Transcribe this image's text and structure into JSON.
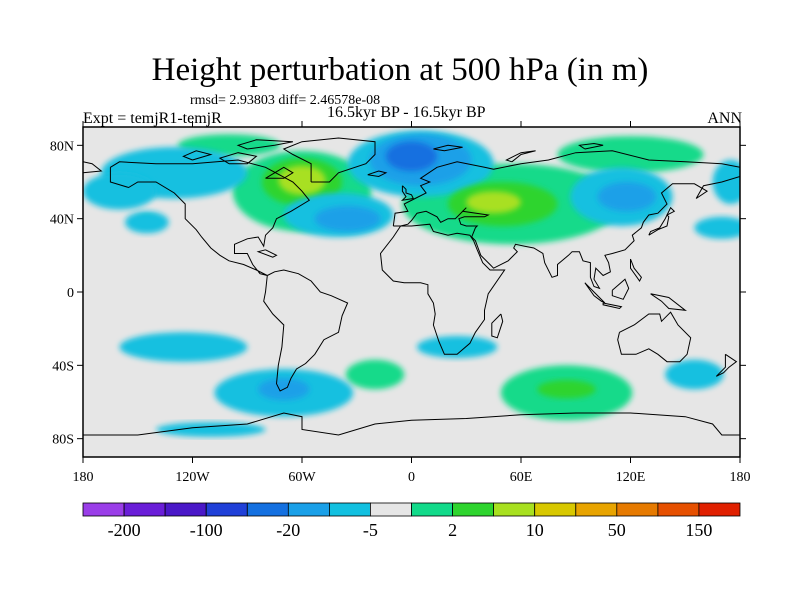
{
  "header": {
    "title": "Height perturbation at 500 hPa (in m)",
    "stats": "rmsd= 2.93803 diff= 2.46578e-08",
    "left_label": "Expt = temjR1-temjR",
    "center_label": "16.5kyr BP - 16.5kyr BP",
    "right_label": "ANN"
  },
  "chart_data": {
    "type": "heatmap",
    "title": "Height perturbation at 500 hPa (in m)",
    "projection": "cylindrical equidistant",
    "xlim": [
      -180,
      180
    ],
    "ylim": [
      -90,
      90
    ],
    "x_ticks": [
      {
        "value": -180,
        "label": "180"
      },
      {
        "value": -120,
        "label": "120W"
      },
      {
        "value": -60,
        "label": "60W"
      },
      {
        "value": 0,
        "label": "0"
      },
      {
        "value": 60,
        "label": "60E"
      },
      {
        "value": 120,
        "label": "120E"
      },
      {
        "value": 180,
        "label": "180"
      }
    ],
    "y_ticks": [
      {
        "value": 80,
        "label": "80N"
      },
      {
        "value": 40,
        "label": "40N"
      },
      {
        "value": 0,
        "label": "0"
      },
      {
        "value": -40,
        "label": "40S"
      },
      {
        "value": -80,
        "label": "80S"
      }
    ],
    "colorbar": {
      "colors": [
        "#9a3ee8",
        "#6a1ed8",
        "#4a18c8",
        "#2040d8",
        "#1470e0",
        "#1aa0e8",
        "#12c0e0",
        "#e6e6e6",
        "#12da8a",
        "#2ed42e",
        "#a8e020",
        "#d8c800",
        "#e8a400",
        "#e67a00",
        "#e65000",
        "#e02000"
      ],
      "labels": [
        {
          "index": 1,
          "text": "-200"
        },
        {
          "index": 3,
          "text": "-100"
        },
        {
          "index": 5,
          "text": "-20"
        },
        {
          "index": 7,
          "text": "-5"
        },
        {
          "index": 9,
          "text": "2"
        },
        {
          "index": 11,
          "text": "10"
        },
        {
          "index": 13,
          "text": "50"
        },
        {
          "index": 15,
          "text": "150"
        }
      ]
    },
    "anomalies": [
      {
        "lon": -130,
        "lat": 65,
        "rx": 40,
        "ry": 14,
        "level": 6
      },
      {
        "lon": -160,
        "lat": 55,
        "rx": 20,
        "ry": 10,
        "level": 6
      },
      {
        "lon": -145,
        "lat": 38,
        "rx": 12,
        "ry": 6,
        "level": 6
      },
      {
        "lon": -145,
        "lat": 39,
        "rx": 5,
        "ry": 3,
        "level": 8
      },
      {
        "lon": -60,
        "lat": 55,
        "rx": 38,
        "ry": 22,
        "level": 8
      },
      {
        "lon": -60,
        "lat": 60,
        "rx": 22,
        "ry": 13,
        "level": 9
      },
      {
        "lon": -60,
        "lat": 61,
        "rx": 13,
        "ry": 8,
        "level": 10
      },
      {
        "lon": -100,
        "lat": 80,
        "rx": 28,
        "ry": 6,
        "level": 8
      },
      {
        "lon": -40,
        "lat": 42,
        "rx": 30,
        "ry": 12,
        "level": 6
      },
      {
        "lon": -35,
        "lat": 40,
        "rx": 18,
        "ry": 7,
        "level": 5
      },
      {
        "lon": 5,
        "lat": 70,
        "rx": 40,
        "ry": 18,
        "level": 6
      },
      {
        "lon": 5,
        "lat": 72,
        "rx": 28,
        "ry": 14,
        "level": 5
      },
      {
        "lon": 0,
        "lat": 74,
        "rx": 14,
        "ry": 8,
        "level": 4
      },
      {
        "lon": 55,
        "lat": 48,
        "rx": 60,
        "ry": 22,
        "level": 8
      },
      {
        "lon": 50,
        "lat": 48,
        "rx": 30,
        "ry": 12,
        "level": 9
      },
      {
        "lon": 45,
        "lat": 49,
        "rx": 15,
        "ry": 6,
        "level": 10
      },
      {
        "lon": 120,
        "lat": 75,
        "rx": 40,
        "ry": 10,
        "level": 8
      },
      {
        "lon": 115,
        "lat": 52,
        "rx": 28,
        "ry": 16,
        "level": 6
      },
      {
        "lon": 118,
        "lat": 52,
        "rx": 16,
        "ry": 8,
        "level": 5
      },
      {
        "lon": 175,
        "lat": 60,
        "rx": 10,
        "ry": 12,
        "level": 6
      },
      {
        "lon": 170,
        "lat": 35,
        "rx": 15,
        "ry": 6,
        "level": 6
      },
      {
        "lon": -125,
        "lat": -30,
        "rx": 35,
        "ry": 8,
        "level": 6
      },
      {
        "lon": -70,
        "lat": -55,
        "rx": 38,
        "ry": 13,
        "level": 6
      },
      {
        "lon": -70,
        "lat": -53,
        "rx": 14,
        "ry": 6,
        "level": 5
      },
      {
        "lon": -110,
        "lat": -75,
        "rx": 30,
        "ry": 4,
        "level": 6
      },
      {
        "lon": -20,
        "lat": -45,
        "rx": 16,
        "ry": 8,
        "level": 8
      },
      {
        "lon": 25,
        "lat": -30,
        "rx": 22,
        "ry": 6,
        "level": 6
      },
      {
        "lon": 85,
        "lat": -55,
        "rx": 36,
        "ry": 15,
        "level": 8
      },
      {
        "lon": 85,
        "lat": -53,
        "rx": 16,
        "ry": 5,
        "level": 9
      },
      {
        "lon": 155,
        "lat": -45,
        "rx": 16,
        "ry": 8,
        "level": 6
      }
    ]
  }
}
